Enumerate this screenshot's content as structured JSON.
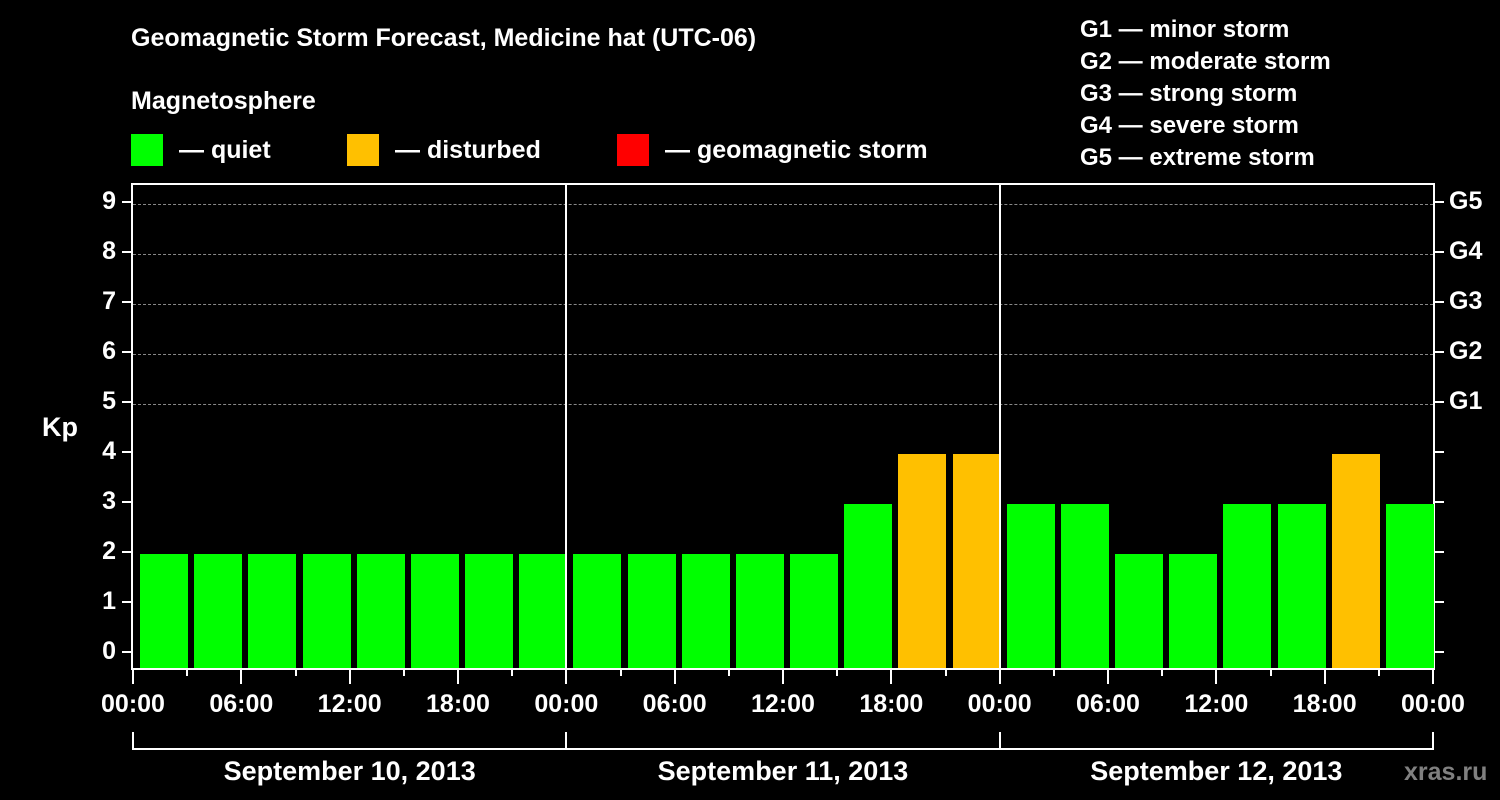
{
  "title": "Geomagnetic Storm Forecast, Medicine hat (UTC-06)",
  "subtitle": "Magnetosphere",
  "legend": [
    {
      "label": "— quiet",
      "color": "#00ff00"
    },
    {
      "label": "— disturbed",
      "color": "#ffc000"
    },
    {
      "label": "— geomagnetic storm",
      "color": "#ff0000"
    }
  ],
  "g_scale_legend": [
    "G1 — minor storm",
    "G2 — moderate storm",
    "G3 — strong storm",
    "G4 — severe storm",
    "G5 — extreme storm"
  ],
  "y_axis_label": "Kp",
  "watermark": "xras.ru",
  "chart_data": {
    "type": "bar",
    "title": "Geomagnetic Storm Forecast, Medicine hat (UTC-06)",
    "xlabel": "",
    "ylabel": "Kp",
    "ylim": [
      0,
      9
    ],
    "grid": "dashed horizontal at 5-9",
    "y_ticks": [
      0,
      1,
      2,
      3,
      4,
      5,
      6,
      7,
      8,
      9
    ],
    "right_axis_ticks": [
      {
        "kp": 5,
        "label": "G1"
      },
      {
        "kp": 6,
        "label": "G2"
      },
      {
        "kp": 7,
        "label": "G3"
      },
      {
        "kp": 8,
        "label": "G4"
      },
      {
        "kp": 9,
        "label": "G5"
      }
    ],
    "x_tick_labels": [
      "00:00",
      "06:00",
      "12:00",
      "18:00",
      "00:00",
      "06:00",
      "12:00",
      "18:00",
      "00:00",
      "06:00",
      "12:00",
      "18:00",
      "00:00"
    ],
    "days": [
      "September 10, 2013",
      "September 11, 2013",
      "September 12, 2013"
    ],
    "interval_hours": 3,
    "categories": [
      "Sep10 00-03",
      "Sep10 03-06",
      "Sep10 06-09",
      "Sep10 09-12",
      "Sep10 12-15",
      "Sep10 15-18",
      "Sep10 18-21",
      "Sep10 21-24",
      "Sep11 00-03",
      "Sep11 03-06",
      "Sep11 06-09",
      "Sep11 09-12",
      "Sep11 12-15",
      "Sep11 15-18",
      "Sep11 18-21",
      "Sep11 21-24",
      "Sep12 00-03",
      "Sep12 03-06",
      "Sep12 06-09",
      "Sep12 09-12",
      "Sep12 12-15",
      "Sep12 15-18",
      "Sep12 18-21",
      "Sep12 21-24"
    ],
    "values": [
      2,
      2,
      2,
      2,
      2,
      2,
      2,
      2,
      2,
      2,
      2,
      2,
      2,
      3,
      4,
      4,
      3,
      3,
      2,
      2,
      3,
      3,
      4,
      3
    ],
    "status": [
      "quiet",
      "quiet",
      "quiet",
      "quiet",
      "quiet",
      "quiet",
      "quiet",
      "quiet",
      "quiet",
      "quiet",
      "quiet",
      "quiet",
      "quiet",
      "quiet",
      "disturbed",
      "disturbed",
      "quiet",
      "quiet",
      "quiet",
      "quiet",
      "quiet",
      "quiet",
      "disturbed",
      "quiet"
    ],
    "colors": {
      "quiet": "#00ff00",
      "disturbed": "#ffc000",
      "storm": "#ff0000"
    }
  }
}
